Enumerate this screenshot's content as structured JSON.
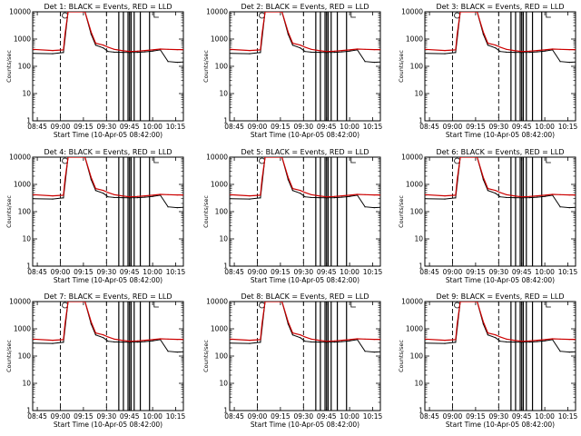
{
  "figure": {
    "background": "#ffffff",
    "colors": {
      "events": "#000000",
      "lld": "#cc0000"
    }
  },
  "chart_data": [
    {
      "type": "line",
      "title": "Det 1: BLACK = Events, RED = LLD",
      "xlabel": "Start Time (10-Apr-05 08:42:00)",
      "ylabel": "Counts/sec",
      "yscale": "log",
      "ylim": [
        1,
        10000
      ],
      "xlim": [
        "08:42",
        "10:20"
      ],
      "xticks": [
        "08:45",
        "09:00",
        "09:15",
        "09:30",
        "09:45",
        "10:00",
        "10:15"
      ],
      "yticks": [
        "1",
        "10",
        "100",
        "1000",
        "10000"
      ],
      "x": [
        "08:42",
        "08:55",
        "09:02",
        "09:03",
        "09:05",
        "09:16",
        "09:20",
        "09:23",
        "09:28",
        "09:31",
        "09:35",
        "09:40",
        "09:45",
        "09:50",
        "09:55",
        "10:00",
        "10:05",
        "10:10",
        "10:16",
        "10:20"
      ],
      "series": [
        {
          "name": "Events",
          "values": [
            300,
            290,
            320,
            1000,
            10000,
            10000,
            1500,
            600,
            470,
            350,
            330,
            325,
            320,
            325,
            340,
            360,
            400,
            150,
            140,
            145
          ]
        },
        {
          "name": "LLD",
          "values": [
            420,
            380,
            400,
            1500,
            10000,
            10000,
            1800,
            700,
            600,
            500,
            420,
            380,
            350,
            360,
            380,
            400,
            430,
            420,
            410,
            410
          ]
        }
      ]
    },
    {
      "type": "line",
      "title": "Det 2: BLACK = Events, RED = LLD",
      "xlabel": "Start Time (10-Apr-05 08:42:00)",
      "ylabel": "Counts/sec",
      "yscale": "log",
      "ylim": [
        1,
        10000
      ],
      "xlim": [
        "08:42",
        "10:20"
      ],
      "xticks": [
        "08:45",
        "09:00",
        "09:15",
        "09:30",
        "09:45",
        "10:00",
        "10:15"
      ],
      "yticks": [
        "1",
        "10",
        "100",
        "1000",
        "10000"
      ],
      "x": [
        "08:42",
        "08:55",
        "09:02",
        "09:03",
        "09:05",
        "09:16",
        "09:20",
        "09:23",
        "09:28",
        "09:31",
        "09:35",
        "09:40",
        "09:45",
        "09:50",
        "09:55",
        "10:00",
        "10:05",
        "10:10",
        "10:16",
        "10:20"
      ],
      "series": [
        {
          "name": "Events",
          "values": [
            300,
            290,
            320,
            1000,
            10000,
            10000,
            1500,
            600,
            470,
            350,
            330,
            325,
            320,
            325,
            340,
            360,
            400,
            150,
            140,
            145
          ]
        },
        {
          "name": "LLD",
          "values": [
            420,
            380,
            400,
            1500,
            10000,
            10000,
            1800,
            700,
            600,
            500,
            420,
            380,
            350,
            360,
            380,
            400,
            430,
            420,
            410,
            410
          ]
        }
      ]
    },
    {
      "type": "line",
      "title": "Det 3: BLACK = Events, RED = LLD",
      "xlabel": "Start Time (10-Apr-05 08:42:00)",
      "ylabel": "Counts/sec",
      "yscale": "log",
      "ylim": [
        1,
        10000
      ],
      "xlim": [
        "08:42",
        "10:20"
      ],
      "xticks": [
        "08:45",
        "09:00",
        "09:15",
        "09:30",
        "09:45",
        "10:00",
        "10:15"
      ],
      "yticks": [
        "1",
        "10",
        "100",
        "1000",
        "10000"
      ],
      "x": [
        "08:42",
        "08:55",
        "09:02",
        "09:03",
        "09:05",
        "09:16",
        "09:20",
        "09:23",
        "09:28",
        "09:31",
        "09:35",
        "09:40",
        "09:45",
        "09:50",
        "09:55",
        "10:00",
        "10:05",
        "10:10",
        "10:16",
        "10:20"
      ],
      "series": [
        {
          "name": "Events",
          "values": [
            300,
            290,
            320,
            1000,
            10000,
            10000,
            1500,
            600,
            470,
            350,
            330,
            325,
            320,
            325,
            340,
            360,
            400,
            150,
            140,
            145
          ]
        },
        {
          "name": "LLD",
          "values": [
            420,
            380,
            400,
            1500,
            10000,
            10000,
            1800,
            700,
            600,
            500,
            420,
            380,
            350,
            360,
            380,
            400,
            430,
            420,
            410,
            410
          ]
        }
      ]
    },
    {
      "type": "line",
      "title": "Det 4: BLACK = Events, RED = LLD",
      "xlabel": "Start Time (10-Apr-05 08:42:00)",
      "ylabel": "Counts/sec",
      "yscale": "log",
      "ylim": [
        1,
        10000
      ],
      "xlim": [
        "08:42",
        "10:20"
      ],
      "xticks": [
        "08:45",
        "09:00",
        "09:15",
        "09:30",
        "09:45",
        "10:00",
        "10:15"
      ],
      "yticks": [
        "1",
        "10",
        "100",
        "1000",
        "10000"
      ],
      "x": [
        "08:42",
        "08:55",
        "09:02",
        "09:03",
        "09:05",
        "09:16",
        "09:20",
        "09:23",
        "09:28",
        "09:31",
        "09:35",
        "09:40",
        "09:45",
        "09:50",
        "09:55",
        "10:00",
        "10:05",
        "10:10",
        "10:16",
        "10:20"
      ],
      "series": [
        {
          "name": "Events",
          "values": [
            300,
            290,
            320,
            1000,
            10000,
            10000,
            1500,
            600,
            470,
            350,
            330,
            325,
            320,
            325,
            340,
            360,
            400,
            150,
            140,
            145
          ]
        },
        {
          "name": "LLD",
          "values": [
            420,
            380,
            400,
            1500,
            10000,
            10000,
            1800,
            700,
            600,
            500,
            420,
            380,
            350,
            360,
            380,
            400,
            430,
            420,
            410,
            410
          ]
        }
      ]
    },
    {
      "type": "line",
      "title": "Det 5: BLACK = Events, RED = LLD",
      "xlabel": "Start Time (10-Apr-05 08:42:00)",
      "ylabel": "Counts/sec",
      "yscale": "log",
      "ylim": [
        1,
        10000
      ],
      "xlim": [
        "08:42",
        "10:20"
      ],
      "xticks": [
        "08:45",
        "09:00",
        "09:15",
        "09:30",
        "09:45",
        "10:00",
        "10:15"
      ],
      "yticks": [
        "1",
        "10",
        "100",
        "1000",
        "10000"
      ],
      "x": [
        "08:42",
        "08:55",
        "09:02",
        "09:03",
        "09:05",
        "09:16",
        "09:20",
        "09:23",
        "09:28",
        "09:31",
        "09:35",
        "09:40",
        "09:45",
        "09:50",
        "09:55",
        "10:00",
        "10:05",
        "10:10",
        "10:16",
        "10:20"
      ],
      "series": [
        {
          "name": "Events",
          "values": [
            300,
            290,
            320,
            1000,
            10000,
            10000,
            1500,
            600,
            470,
            350,
            330,
            325,
            320,
            325,
            340,
            360,
            400,
            150,
            140,
            145
          ]
        },
        {
          "name": "LLD",
          "values": [
            420,
            380,
            400,
            1500,
            10000,
            10000,
            1800,
            700,
            600,
            500,
            420,
            380,
            350,
            360,
            380,
            400,
            430,
            420,
            410,
            410
          ]
        }
      ]
    },
    {
      "type": "line",
      "title": "Det 6: BLACK = Events, RED = LLD",
      "xlabel": "Start Time (10-Apr-05 08:42:00)",
      "ylabel": "Counts/sec",
      "yscale": "log",
      "ylim": [
        1,
        10000
      ],
      "xlim": [
        "08:42",
        "10:20"
      ],
      "xticks": [
        "08:45",
        "09:00",
        "09:15",
        "09:30",
        "09:45",
        "10:00",
        "10:15"
      ],
      "yticks": [
        "1",
        "10",
        "100",
        "1000",
        "10000"
      ],
      "x": [
        "08:42",
        "08:55",
        "09:02",
        "09:03",
        "09:05",
        "09:16",
        "09:20",
        "09:23",
        "09:28",
        "09:31",
        "09:35",
        "09:40",
        "09:45",
        "09:50",
        "09:55",
        "10:00",
        "10:05",
        "10:10",
        "10:16",
        "10:20"
      ],
      "series": [
        {
          "name": "Events",
          "values": [
            300,
            290,
            320,
            1000,
            10000,
            10000,
            1500,
            600,
            470,
            350,
            330,
            325,
            320,
            325,
            340,
            360,
            400,
            150,
            140,
            145
          ]
        },
        {
          "name": "LLD",
          "values": [
            420,
            380,
            400,
            1500,
            10000,
            10000,
            1800,
            700,
            600,
            500,
            420,
            380,
            350,
            360,
            380,
            400,
            430,
            420,
            410,
            410
          ]
        }
      ]
    },
    {
      "type": "line",
      "title": "Det 7: BLACK = Events, RED = LLD",
      "xlabel": "Start Time (10-Apr-05 08:42:00)",
      "ylabel": "Counts/sec",
      "yscale": "log",
      "ylim": [
        1,
        10000
      ],
      "xlim": [
        "08:42",
        "10:20"
      ],
      "xticks": [
        "08:45",
        "09:00",
        "09:15",
        "09:30",
        "09:45",
        "10:00",
        "10:15"
      ],
      "yticks": [
        "1",
        "10",
        "100",
        "1000",
        "10000"
      ],
      "x": [
        "08:42",
        "08:55",
        "09:02",
        "09:03",
        "09:05",
        "09:16",
        "09:20",
        "09:23",
        "09:28",
        "09:31",
        "09:35",
        "09:40",
        "09:45",
        "09:50",
        "09:55",
        "10:00",
        "10:05",
        "10:10",
        "10:16",
        "10:20"
      ],
      "series": [
        {
          "name": "Events",
          "values": [
            300,
            290,
            320,
            1000,
            10000,
            10000,
            1500,
            600,
            470,
            350,
            330,
            325,
            320,
            325,
            340,
            360,
            400,
            150,
            140,
            145
          ]
        },
        {
          "name": "LLD",
          "values": [
            420,
            380,
            400,
            1500,
            10000,
            10000,
            1800,
            700,
            600,
            500,
            420,
            380,
            350,
            360,
            380,
            400,
            430,
            420,
            410,
            410
          ]
        }
      ]
    },
    {
      "type": "line",
      "title": "Det 8: BLACK = Events, RED = LLD",
      "xlabel": "Start Time (10-Apr-05 08:42:00)",
      "ylabel": "Counts/sec",
      "yscale": "log",
      "ylim": [
        1,
        10000
      ],
      "xlim": [
        "08:42",
        "10:20"
      ],
      "xticks": [
        "08:45",
        "09:00",
        "09:15",
        "09:30",
        "09:45",
        "10:00",
        "10:15"
      ],
      "yticks": [
        "1",
        "10",
        "100",
        "1000",
        "10000"
      ],
      "x": [
        "08:42",
        "08:55",
        "09:02",
        "09:03",
        "09:05",
        "09:16",
        "09:20",
        "09:23",
        "09:28",
        "09:31",
        "09:35",
        "09:40",
        "09:45",
        "09:50",
        "09:55",
        "10:00",
        "10:05",
        "10:10",
        "10:16",
        "10:20"
      ],
      "series": [
        {
          "name": "Events",
          "values": [
            300,
            290,
            320,
            1000,
            10000,
            10000,
            1500,
            600,
            470,
            350,
            330,
            325,
            320,
            325,
            340,
            360,
            400,
            150,
            140,
            145
          ]
        },
        {
          "name": "LLD",
          "values": [
            420,
            380,
            400,
            1500,
            10000,
            10000,
            1800,
            700,
            600,
            500,
            420,
            380,
            350,
            360,
            380,
            400,
            430,
            420,
            410,
            410
          ]
        }
      ]
    },
    {
      "type": "line",
      "title": "Det 9: BLACK = Events, RED = LLD",
      "xlabel": "Start Time (10-Apr-05 08:42:00)",
      "ylabel": "Counts/sec",
      "yscale": "log",
      "ylim": [
        1,
        10000
      ],
      "xlim": [
        "08:42",
        "10:20"
      ],
      "xticks": [
        "08:45",
        "09:00",
        "09:15",
        "09:30",
        "09:45",
        "10:00",
        "10:15"
      ],
      "yticks": [
        "1",
        "10",
        "100",
        "1000",
        "10000"
      ],
      "x": [
        "08:42",
        "08:55",
        "09:02",
        "09:03",
        "09:05",
        "09:16",
        "09:20",
        "09:23",
        "09:28",
        "09:31",
        "09:35",
        "09:40",
        "09:45",
        "09:50",
        "09:55",
        "10:00",
        "10:05",
        "10:10",
        "10:16",
        "10:20"
      ],
      "series": [
        {
          "name": "Events",
          "values": [
            300,
            290,
            320,
            1000,
            10000,
            10000,
            1500,
            600,
            470,
            350,
            330,
            325,
            320,
            325,
            340,
            360,
            400,
            150,
            140,
            145
          ]
        },
        {
          "name": "LLD",
          "values": [
            420,
            380,
            400,
            1500,
            10000,
            10000,
            1800,
            700,
            600,
            500,
            420,
            380,
            350,
            360,
            380,
            400,
            430,
            420,
            410,
            410
          ]
        }
      ]
    }
  ]
}
